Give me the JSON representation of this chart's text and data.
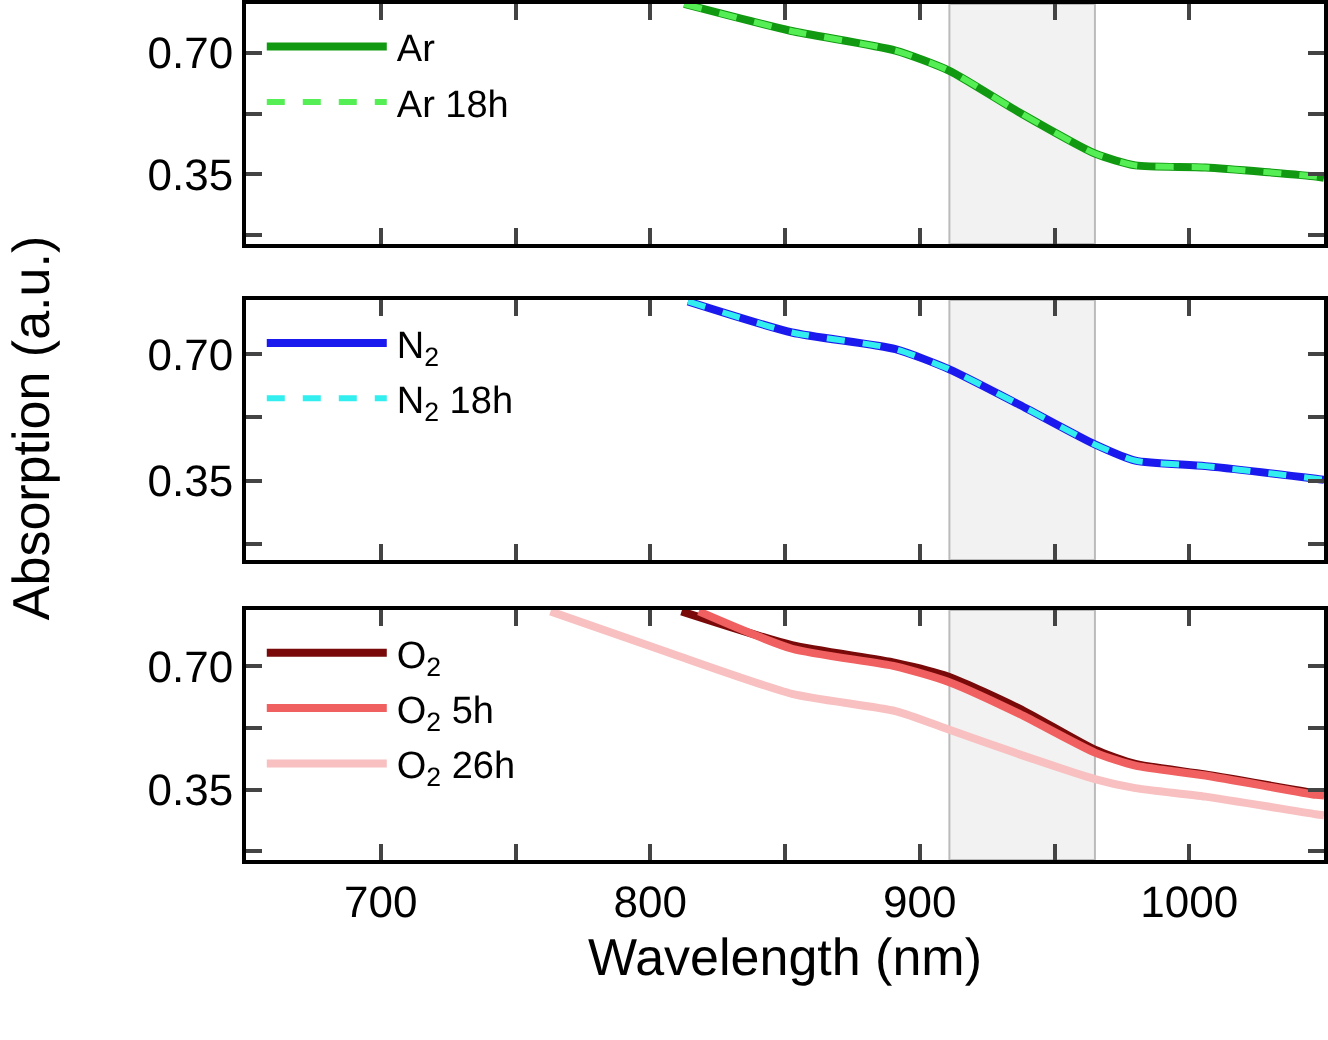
{
  "chart_data": [
    {
      "type": "line",
      "x": [
        812.6,
        852,
        891,
        911,
        937,
        965,
        980,
        1006,
        1047,
        1050
      ],
      "series": [
        {
          "name": "Ar",
          "color": "#119911",
          "line_style": "solid",
          "values": [
            0.84,
            0.763,
            0.706,
            0.648,
            0.528,
            0.41,
            0.376,
            0.37,
            0.344,
            0.34
          ]
        },
        {
          "name": "Ar 18h",
          "color": "#55ee55",
          "line_style": "dashed",
          "values": [
            0.84,
            0.763,
            0.706,
            0.648,
            0.528,
            0.41,
            0.376,
            0.37,
            0.344,
            0.34
          ]
        }
      ],
      "xlim": [
        650,
        1050
      ],
      "xticks": [
        {
          "value": 700,
          "label": null
        },
        {
          "value": 750,
          "label": null
        },
        {
          "value": 800,
          "label": null
        },
        {
          "value": 850,
          "label": null
        },
        {
          "value": 900,
          "label": null
        },
        {
          "value": 950,
          "label": null
        },
        {
          "value": 1000,
          "label": null
        }
      ],
      "ylim": [
        0.15,
        0.84
      ],
      "yticks": [
        {
          "value": 0.175,
          "label": null
        },
        {
          "value": 0.35,
          "label": "0.35"
        },
        {
          "value": 0.525,
          "label": null
        },
        {
          "value": 0.7,
          "label": "0.70"
        }
      ],
      "bands": [
        {
          "axis": "x",
          "from": 911,
          "to": 965,
          "color": "#f2f2f2"
        }
      ],
      "legend": "top left",
      "tick_labels": "y"
    },
    {
      "type": "line",
      "x": [
        814,
        852.6,
        891,
        911,
        937,
        965,
        980,
        1006,
        1047,
        1050
      ],
      "series": [
        {
          "name": "N$_{2}$",
          "color": "#1a1aee",
          "line_style": "solid",
          "values": [
            0.846,
            0.76,
            0.714,
            0.658,
            0.56,
            0.45,
            0.405,
            0.39,
            0.355,
            0.352
          ]
        },
        {
          "name": "N$_{2}$ 18h",
          "color": "#33eeee",
          "line_style": "dashed",
          "values": [
            0.846,
            0.76,
            0.714,
            0.658,
            0.56,
            0.45,
            0.405,
            0.39,
            0.355,
            0.352
          ]
        }
      ],
      "ylabel": "Absorption (a.u.)",
      "xlim": [
        650,
        1050
      ],
      "xticks": [
        {
          "value": 700,
          "label": null
        },
        {
          "value": 750,
          "label": null
        },
        {
          "value": 800,
          "label": null
        },
        {
          "value": 850,
          "label": null
        },
        {
          "value": 900,
          "label": null
        },
        {
          "value": 950,
          "label": null
        },
        {
          "value": 1000,
          "label": null
        }
      ],
      "ylim": [
        0.13,
        0.85
      ],
      "yticks": [
        {
          "value": 0.175,
          "label": null
        },
        {
          "value": 0.35,
          "label": "0.35"
        },
        {
          "value": 0.525,
          "label": null
        },
        {
          "value": 0.7,
          "label": "0.70"
        }
      ],
      "bands": [
        {
          "axis": "x",
          "from": 911,
          "to": 965,
          "color": "#f2f2f2"
        }
      ],
      "legend": "top left",
      "tick_labels": "y"
    },
    {
      "type": "line",
      "series": [
        {
          "name": "O$_{2}$",
          "color": "#7a0a0a",
          "line_style": "solid",
          "x": [
            811.6,
            852.6,
            891,
            911,
            937,
            965,
            980,
            1006,
            1047,
            1050
          ],
          "values": [
            0.856,
            0.76,
            0.71,
            0.67,
            0.58,
            0.463,
            0.423,
            0.393,
            0.34,
            0.338
          ]
        },
        {
          "name": "O$_{2}$ 5h",
          "color": "#f06060",
          "line_style": "solid",
          "x": [
            818,
            852.6,
            891,
            911,
            937,
            965,
            980,
            1006,
            1047,
            1050
          ],
          "values": [
            0.856,
            0.75,
            0.7,
            0.655,
            0.565,
            0.455,
            0.418,
            0.39,
            0.335,
            0.333
          ]
        },
        {
          "name": "O$_{2}$ 26h",
          "color": "#f8c0c0",
          "line_style": "solid",
          "x": [
            763,
            806.5,
            852.6,
            891,
            911,
            937,
            965,
            980,
            1006,
            1047,
            1050
          ],
          "values": [
            0.856,
            0.74,
            0.622,
            0.573,
            0.52,
            0.45,
            0.38,
            0.354,
            0.33,
            0.28,
            0.277
          ]
        }
      ],
      "xlabel": "Wavelength (nm)",
      "xlim": [
        650,
        1050
      ],
      "xticks": [
        700,
        {
          "value": 750,
          "label": null
        },
        800,
        {
          "value": 850,
          "label": null
        },
        900,
        {
          "value": 950,
          "label": null
        },
        1000
      ],
      "ylim": [
        0.15,
        0.86
      ],
      "yticks": [
        {
          "value": 0.175,
          "label": null
        },
        {
          "value": 0.35,
          "label": "0.35"
        },
        {
          "value": 0.525,
          "label": null
        },
        {
          "value": 0.7,
          "label": "0.70"
        }
      ],
      "bands": [
        {
          "axis": "x",
          "from": 911,
          "to": 965,
          "color": "#f2f2f2"
        }
      ],
      "legend": "top left"
    }
  ]
}
